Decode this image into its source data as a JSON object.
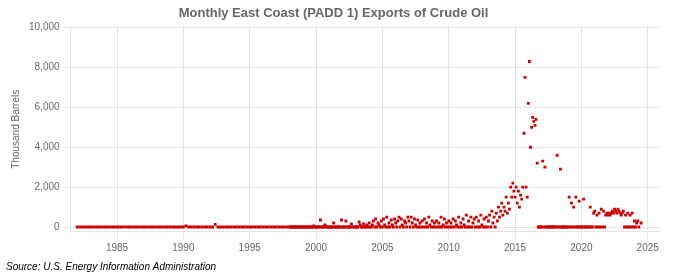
{
  "chart_data": {
    "type": "scatter",
    "title": "Monthly East Coast (PADD 1) Exports of Crude Oil",
    "ylabel": "Thousand Barrels",
    "annotations": [
      "Source: U.S. Energy Information Administration"
    ],
    "color": "#cc0000",
    "marker": "square",
    "grid": true,
    "xlim": [
      1981.5,
      2026.0
    ],
    "ylim": [
      -200,
      10000
    ],
    "xticks": [
      1985,
      1990,
      1995,
      2000,
      2005,
      2010,
      2015,
      2020,
      2025
    ],
    "yticks": [
      0,
      {
        "value": 2000,
        "label": "2,000"
      },
      {
        "value": 4000,
        "label": "4,000"
      },
      {
        "value": 6000,
        "label": "6,000"
      },
      {
        "value": 8000,
        "label": "8,000"
      },
      {
        "value": 10000,
        "label": "10,000"
      }
    ],
    "x": [
      1982.0,
      1982.2,
      1982.4,
      1982.6,
      1982.8,
      1983.0,
      1983.2,
      1983.4,
      1983.6,
      1983.8,
      1984.0,
      1984.2,
      1984.4,
      1984.6,
      1984.8,
      1985.0,
      1985.2,
      1985.4,
      1985.6,
      1985.8,
      1986.0,
      1986.2,
      1986.4,
      1986.6,
      1986.8,
      1987.0,
      1987.2,
      1987.4,
      1987.6,
      1987.8,
      1988.0,
      1988.2,
      1988.4,
      1988.6,
      1988.8,
      1989.0,
      1989.2,
      1989.4,
      1989.6,
      1989.8,
      1990.0,
      1990.2,
      1990.4,
      1990.6,
      1990.8,
      1991.0,
      1991.2,
      1991.4,
      1991.6,
      1991.8,
      1992.0,
      1992.2,
      1992.4,
      1992.6,
      1992.8,
      1993.0,
      1993.2,
      1993.4,
      1993.6,
      1993.8,
      1994.0,
      1994.2,
      1994.4,
      1994.6,
      1994.8,
      1995.0,
      1995.2,
      1995.4,
      1995.6,
      1995.8,
      1996.0,
      1996.2,
      1996.4,
      1996.6,
      1996.8,
      1997.0,
      1997.2,
      1997.4,
      1997.6,
      1997.8,
      1998.0,
      1998.08,
      1998.17,
      1998.25,
      1998.33,
      1998.42,
      1998.5,
      1998.58,
      1998.67,
      1998.75,
      1998.83,
      1998.92,
      1999.0,
      1999.08,
      1999.17,
      1999.25,
      1999.33,
      1999.42,
      1999.5,
      1999.58,
      1999.67,
      1999.75,
      1999.83,
      1999.92,
      2000.0,
      2000.08,
      2000.17,
      2000.25,
      2000.33,
      2000.42,
      2000.5,
      2000.58,
      2000.67,
      2000.75,
      2000.83,
      2000.92,
      2001.0,
      2001.08,
      2001.17,
      2001.25,
      2001.33,
      2001.42,
      2001.5,
      2001.58,
      2001.67,
      2001.75,
      2001.83,
      2001.92,
      2002.0,
      2002.08,
      2002.17,
      2002.25,
      2002.33,
      2002.42,
      2002.5,
      2002.58,
      2002.67,
      2002.75,
      2002.83,
      2002.92,
      2003.0,
      2003.08,
      2003.17,
      2003.25,
      2003.33,
      2003.42,
      2003.5,
      2003.58,
      2003.67,
      2003.75,
      2003.83,
      2003.92,
      2004.0,
      2004.08,
      2004.17,
      2004.25,
      2004.33,
      2004.42,
      2004.5,
      2004.58,
      2004.67,
      2004.75,
      2004.83,
      2004.92,
      2005.0,
      2005.08,
      2005.17,
      2005.25,
      2005.33,
      2005.42,
      2005.5,
      2005.58,
      2005.67,
      2005.75,
      2005.83,
      2005.92,
      2006.0,
      2006.08,
      2006.17,
      2006.25,
      2006.33,
      2006.42,
      2006.5,
      2006.58,
      2006.67,
      2006.75,
      2006.83,
      2006.92,
      2007.0,
      2007.08,
      2007.17,
      2007.25,
      2007.33,
      2007.42,
      2007.5,
      2007.58,
      2007.67,
      2007.75,
      2007.83,
      2007.92,
      2008.0,
      2008.08,
      2008.17,
      2008.25,
      2008.33,
      2008.42,
      2008.5,
      2008.58,
      2008.67,
      2008.75,
      2008.83,
      2008.92,
      2009.0,
      2009.08,
      2009.17,
      2009.25,
      2009.33,
      2009.42,
      2009.5,
      2009.58,
      2009.67,
      2009.75,
      2009.83,
      2009.92,
      2010.0,
      2010.08,
      2010.17,
      2010.25,
      2010.33,
      2010.42,
      2010.5,
      2010.58,
      2010.67,
      2010.75,
      2010.83,
      2010.92,
      2011.0,
      2011.08,
      2011.17,
      2011.25,
      2011.33,
      2011.42,
      2011.5,
      2011.58,
      2011.67,
      2011.75,
      2011.83,
      2011.92,
      2012.0,
      2012.08,
      2012.17,
      2012.25,
      2012.33,
      2012.42,
      2012.5,
      2012.58,
      2012.67,
      2012.75,
      2012.83,
      2012.92,
      2013.0,
      2013.08,
      2013.17,
      2013.25,
      2013.33,
      2013.42,
      2013.5,
      2013.58,
      2013.67,
      2013.75,
      2013.83,
      2013.92,
      2014.0,
      2014.08,
      2014.17,
      2014.25,
      2014.33,
      2014.42,
      2014.5,
      2014.58,
      2014.67,
      2014.75,
      2014.83,
      2014.92,
      2015.0,
      2015.08,
      2015.17,
      2015.25,
      2015.33,
      2015.42,
      2015.5,
      2015.58,
      2015.67,
      2015.75,
      2015.83,
      2015.92,
      2016.0,
      2016.08,
      2016.17,
      2016.25,
      2016.33,
      2016.42,
      2016.5,
      2016.58,
      2016.67,
      2016.75,
      2016.83,
      2016.92,
      2017.0,
      2017.08,
      2017.17,
      2017.25,
      2017.33,
      2017.42,
      2017.5,
      2017.58,
      2017.67,
      2017.75,
      2017.83,
      2017.92,
      2018.0,
      2018.08,
      2018.17,
      2018.25,
      2018.33,
      2018.42,
      2018.5,
      2018.58,
      2018.67,
      2018.75,
      2018.83,
      2018.92,
      2019.0,
      2019.08,
      2019.17,
      2019.25,
      2019.33,
      2019.42,
      2019.5,
      2019.58,
      2019.67,
      2019.75,
      2019.83,
      2019.92,
      2020.0,
      2020.08,
      2020.17,
      2020.25,
      2020.33,
      2020.42,
      2020.5,
      2020.58,
      2020.67,
      2020.75,
      2020.83,
      2020.92,
      2021.0,
      2021.08,
      2021.17,
      2021.25,
      2021.33,
      2021.42,
      2021.5,
      2021.58,
      2021.67,
      2021.75,
      2021.83,
      2021.92,
      2022.0,
      2022.08,
      2022.17,
      2022.25,
      2022.33,
      2022.42,
      2022.5,
      2022.58,
      2022.67,
      2022.75,
      2022.83,
      2022.92,
      2023.0,
      2023.08,
      2023.17,
      2023.25,
      2023.33,
      2023.42,
      2023.5,
      2023.58,
      2023.67,
      2023.75,
      2023.83,
      2023.92,
      2024.0,
      2024.08,
      2024.17,
      2024.25,
      2024.33,
      2024.5
    ],
    "values": [
      0,
      0,
      0,
      0,
      0,
      0,
      0,
      0,
      0,
      0,
      0,
      0,
      0,
      0,
      0,
      0,
      0,
      0,
      5,
      0,
      0,
      0,
      0,
      0,
      0,
      0,
      0,
      0,
      0,
      0,
      0,
      0,
      0,
      0,
      0,
      0,
      0,
      0,
      0,
      0,
      0,
      60,
      0,
      0,
      0,
      0,
      0,
      0,
      0,
      0,
      0,
      0,
      130,
      0,
      0,
      0,
      0,
      0,
      0,
      0,
      0,
      0,
      0,
      0,
      0,
      0,
      0,
      0,
      0,
      0,
      0,
      0,
      0,
      0,
      0,
      0,
      0,
      0,
      0,
      0,
      0,
      0,
      0,
      0,
      0,
      0,
      0,
      0,
      0,
      0,
      0,
      0,
      0,
      0,
      0,
      0,
      0,
      0,
      0,
      0,
      0,
      0,
      50,
      0,
      0,
      0,
      0,
      0,
      350,
      0,
      0,
      0,
      100,
      0,
      0,
      0,
      0,
      0,
      0,
      0,
      200,
      0,
      0,
      0,
      0,
      0,
      0,
      350,
      0,
      0,
      0,
      300,
      0,
      0,
      0,
      0,
      150,
      0,
      0,
      0,
      0,
      0,
      0,
      250,
      100,
      0,
      0,
      150,
      0,
      0,
      100,
      0,
      200,
      0,
      0,
      100,
      300,
      0,
      400,
      0,
      200,
      100,
      0,
      300,
      0,
      400,
      100,
      0,
      500,
      0,
      200,
      0,
      350,
      100,
      0,
      400,
      200,
      0,
      300,
      500,
      0,
      400,
      100,
      0,
      300,
      200,
      0,
      500,
      300,
      0,
      500,
      200,
      0,
      400,
      100,
      0,
      350,
      0,
      200,
      0,
      300,
      0,
      400,
      0,
      200,
      0,
      500,
      100,
      0,
      300,
      0,
      200,
      0,
      300,
      0,
      200,
      0,
      500,
      0,
      100,
      400,
      0,
      200,
      0,
      300,
      0,
      200,
      0,
      400,
      0,
      300,
      100,
      0,
      500,
      0,
      200,
      0,
      400,
      100,
      0,
      600,
      0,
      300,
      0,
      500,
      0,
      200,
      400,
      0,
      500,
      0,
      300,
      0,
      600,
      100,
      0,
      400,
      0,
      500,
      0,
      300,
      600,
      0,
      800,
      200,
      500,
      0,
      700,
      300,
      1000,
      500,
      800,
      1200,
      600,
      1000,
      800,
      1500,
      700,
      1200,
      900,
      2000,
      1500,
      2200,
      1800,
      1500,
      2000,
      1200,
      1800,
      1000,
      1600,
      1400,
      2000,
      4700,
      7500,
      2000,
      1500,
      6200,
      8300,
      4000,
      5000,
      5500,
      5300,
      5100,
      5400,
      3200,
      0,
      0,
      0,
      0,
      3300,
      0,
      3000,
      0,
      0,
      0,
      0,
      0,
      0,
      0,
      0,
      0,
      0,
      3600,
      0,
      0,
      2900,
      0,
      0,
      0,
      0,
      0,
      0,
      0,
      1500,
      0,
      1200,
      0,
      1000,
      0,
      1500,
      0,
      0,
      1300,
      0,
      0,
      0,
      1400,
      0,
      0,
      0,
      0,
      0,
      1000,
      0,
      0,
      700,
      800,
      0,
      600,
      0,
      700,
      0,
      900,
      0,
      800,
      0,
      600,
      700,
      600,
      700,
      600,
      700,
      800,
      700,
      900,
      800,
      700,
      900,
      800,
      700,
      600,
      700,
      800,
      0,
      600,
      0,
      700,
      0,
      600,
      0,
      700,
      0,
      300,
      0,
      200,
      300,
      0,
      200
    ]
  }
}
